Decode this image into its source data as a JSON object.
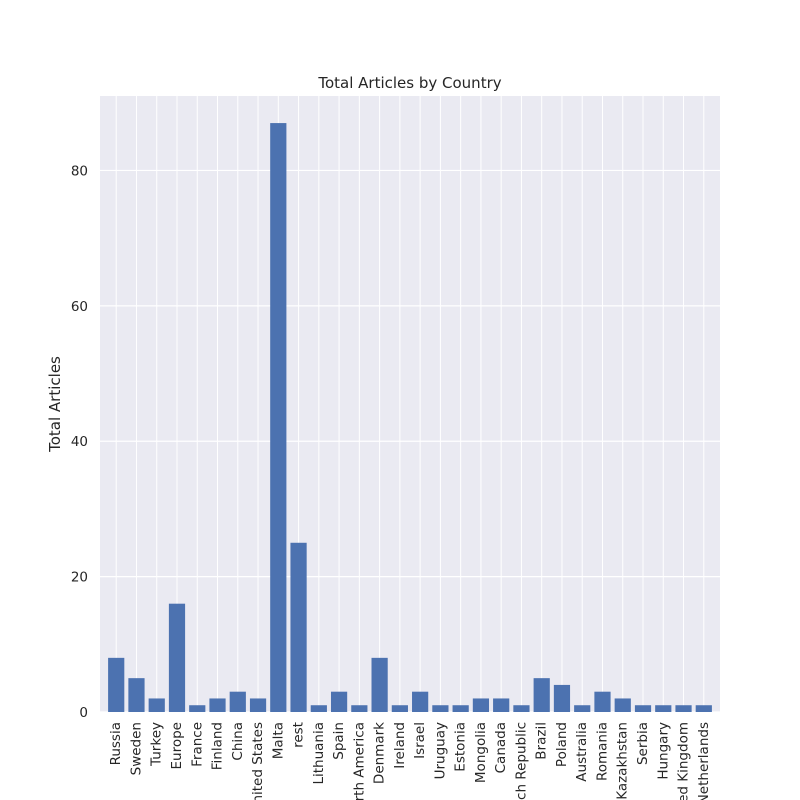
{
  "chart_data": {
    "type": "bar",
    "title": "Total Articles by Country",
    "xlabel": "",
    "ylabel": "Total Articles",
    "ylim": [
      0,
      91
    ],
    "yticks": [
      0,
      20,
      40,
      60,
      80
    ],
    "grid": true,
    "categories": [
      "Russia",
      "Sweden",
      "Turkey",
      "Europe",
      "France",
      "Finland",
      "China",
      "United States",
      "Malta",
      "rest",
      "Lithuania",
      "Spain",
      "North America",
      "Denmark",
      "Ireland",
      "Israel",
      "Uruguay",
      "Estonia",
      "Mongolia",
      "Canada",
      "Czech Republic",
      "Brazil",
      "Poland",
      "Australia",
      "Romania",
      "Kazakhstan",
      "Serbia",
      "Hungary",
      "United Kingdom",
      "Netherlands"
    ],
    "values": [
      8,
      5,
      2,
      16,
      1,
      2,
      3,
      2,
      87,
      25,
      1,
      3,
      1,
      8,
      1,
      3,
      1,
      1,
      2,
      2,
      1,
      5,
      4,
      1,
      3,
      2,
      1,
      1,
      1,
      1
    ],
    "colors": {
      "bar": "#4c72b0",
      "plot_bg": "#eaeaf2",
      "grid": "#ffffff"
    }
  }
}
